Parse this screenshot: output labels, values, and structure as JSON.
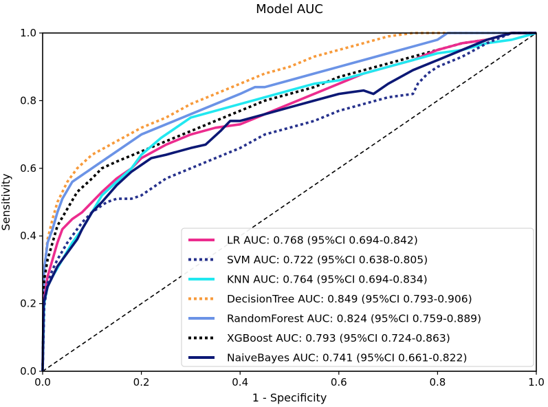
{
  "chart_data": {
    "type": "line",
    "title": "Model AUC",
    "xlabel": "1 - Specificity",
    "ylabel": "Sensitivity",
    "xlim": [
      0,
      1
    ],
    "ylim": [
      0,
      1
    ],
    "xticks": [
      "0.0",
      "0.2",
      "0.4",
      "0.6",
      "0.8",
      "1.0"
    ],
    "yticks": [
      "0.0",
      "0.2",
      "0.4",
      "0.6",
      "0.8",
      "1.0"
    ],
    "legend_position": "lower-right",
    "reference_line": {
      "name": "chance",
      "x": [
        0,
        1
      ],
      "y": [
        0,
        1
      ],
      "color": "#000000",
      "style": "dashed"
    },
    "series": [
      {
        "name": "LR",
        "label": "LR AUC: 0.768 (95%CI 0.694-0.842)",
        "color": "#ec2c8e",
        "style": "solid",
        "x": [
          0,
          0.003,
          0.01,
          0.02,
          0.03,
          0.04,
          0.06,
          0.08,
          0.1,
          0.12,
          0.15,
          0.18,
          0.2,
          0.25,
          0.3,
          0.35,
          0.4,
          0.45,
          0.5,
          0.55,
          0.6,
          0.65,
          0.7,
          0.75,
          0.8,
          0.85,
          0.9,
          0.95,
          1.0
        ],
        "y": [
          0,
          0.21,
          0.28,
          0.33,
          0.38,
          0.42,
          0.45,
          0.47,
          0.5,
          0.53,
          0.57,
          0.6,
          0.63,
          0.67,
          0.7,
          0.72,
          0.73,
          0.76,
          0.79,
          0.82,
          0.85,
          0.88,
          0.9,
          0.92,
          0.95,
          0.97,
          0.98,
          1.0,
          1.0
        ]
      },
      {
        "name": "SVM",
        "label": "SVM AUC: 0.722 (95%CI 0.638-0.805)",
        "color": "#26318c",
        "style": "dotted",
        "x": [
          0,
          0.003,
          0.01,
          0.02,
          0.03,
          0.05,
          0.08,
          0.1,
          0.13,
          0.15,
          0.18,
          0.2,
          0.25,
          0.3,
          0.35,
          0.4,
          0.45,
          0.5,
          0.55,
          0.6,
          0.65,
          0.7,
          0.75,
          0.76,
          0.78,
          0.8,
          0.85,
          0.9,
          0.95,
          1.0
        ],
        "y": [
          0,
          0.19,
          0.26,
          0.3,
          0.33,
          0.38,
          0.44,
          0.47,
          0.5,
          0.51,
          0.51,
          0.52,
          0.57,
          0.6,
          0.63,
          0.66,
          0.7,
          0.72,
          0.74,
          0.77,
          0.79,
          0.81,
          0.82,
          0.85,
          0.88,
          0.9,
          0.93,
          0.97,
          1.0,
          1.0
        ]
      },
      {
        "name": "KNN",
        "label": "KNN AUC: 0.764 (95%CI 0.694-0.834)",
        "color": "#22e8f0",
        "style": "solid",
        "x": [
          0,
          0.003,
          0.01,
          0.02,
          0.04,
          0.06,
          0.08,
          0.1,
          0.12,
          0.15,
          0.18,
          0.2,
          0.24,
          0.27,
          0.3,
          0.35,
          0.4,
          0.45,
          0.5,
          0.55,
          0.6,
          0.65,
          0.7,
          0.75,
          0.8,
          0.85,
          0.9,
          0.95,
          1.0
        ],
        "y": [
          0,
          0.2,
          0.25,
          0.28,
          0.33,
          0.38,
          0.42,
          0.47,
          0.52,
          0.56,
          0.6,
          0.64,
          0.69,
          0.72,
          0.75,
          0.77,
          0.79,
          0.81,
          0.83,
          0.85,
          0.86,
          0.88,
          0.9,
          0.92,
          0.94,
          0.95,
          0.97,
          0.98,
          1.0
        ]
      },
      {
        "name": "DecisionTree",
        "label": "DecisionTree AUC: 0.849 (95%CI 0.793-0.906)",
        "color": "#f79a3b",
        "style": "dotted",
        "x": [
          0,
          0.003,
          0.01,
          0.02,
          0.03,
          0.05,
          0.07,
          0.1,
          0.15,
          0.2,
          0.25,
          0.3,
          0.35,
          0.4,
          0.45,
          0.5,
          0.55,
          0.6,
          0.65,
          0.7,
          0.75,
          0.8,
          0.85,
          0.9,
          1.0
        ],
        "y": [
          0,
          0.3,
          0.39,
          0.45,
          0.5,
          0.56,
          0.6,
          0.64,
          0.68,
          0.72,
          0.75,
          0.79,
          0.82,
          0.85,
          0.88,
          0.9,
          0.93,
          0.95,
          0.97,
          0.99,
          1.0,
          1.0,
          1.0,
          1.0,
          1.0
        ]
      },
      {
        "name": "RandomForest",
        "label": "RandomForest AUC: 0.824 (95%CI 0.759-0.889)",
        "color": "#6b93e6",
        "style": "solid",
        "x": [
          0,
          0.003,
          0.01,
          0.02,
          0.03,
          0.04,
          0.06,
          0.08,
          0.1,
          0.13,
          0.16,
          0.2,
          0.25,
          0.3,
          0.35,
          0.4,
          0.43,
          0.45,
          0.5,
          0.55,
          0.6,
          0.65,
          0.7,
          0.75,
          0.8,
          0.82,
          0.9,
          1.0
        ],
        "y": [
          0,
          0.3,
          0.38,
          0.42,
          0.47,
          0.51,
          0.56,
          0.58,
          0.6,
          0.63,
          0.66,
          0.7,
          0.73,
          0.76,
          0.79,
          0.82,
          0.84,
          0.84,
          0.86,
          0.88,
          0.9,
          0.92,
          0.94,
          0.96,
          0.98,
          1.0,
          1.0,
          1.0
        ]
      },
      {
        "name": "XGBoost",
        "label": "XGBoost AUC: 0.793 (95%CI 0.724-0.863)",
        "color": "#000000",
        "style": "dotted",
        "x": [
          0,
          0.003,
          0.01,
          0.02,
          0.03,
          0.05,
          0.07,
          0.1,
          0.12,
          0.15,
          0.2,
          0.25,
          0.3,
          0.35,
          0.4,
          0.45,
          0.5,
          0.55,
          0.6,
          0.65,
          0.7,
          0.75,
          0.8,
          0.85,
          0.9,
          0.95,
          1.0
        ],
        "y": [
          0,
          0.27,
          0.33,
          0.38,
          0.43,
          0.48,
          0.53,
          0.57,
          0.6,
          0.62,
          0.65,
          0.68,
          0.71,
          0.74,
          0.77,
          0.8,
          0.82,
          0.84,
          0.87,
          0.89,
          0.91,
          0.93,
          0.95,
          0.97,
          0.98,
          1.0,
          1.0
        ]
      },
      {
        "name": "NaiveBayes",
        "label": "NaiveBayes AUC: 0.741 (95%CI 0.661-0.822)",
        "color": "#0c1875",
        "style": "solid",
        "x": [
          0,
          0.002,
          0.005,
          0.01,
          0.02,
          0.03,
          0.05,
          0.07,
          0.08,
          0.1,
          0.12,
          0.15,
          0.18,
          0.2,
          0.22,
          0.25,
          0.3,
          0.33,
          0.36,
          0.38,
          0.4,
          0.45,
          0.5,
          0.55,
          0.6,
          0.65,
          0.67,
          0.7,
          0.75,
          0.8,
          0.85,
          0.9,
          0.95,
          1.0
        ],
        "y": [
          0,
          0.2,
          0.22,
          0.25,
          0.28,
          0.31,
          0.35,
          0.39,
          0.42,
          0.47,
          0.5,
          0.55,
          0.59,
          0.61,
          0.63,
          0.64,
          0.66,
          0.67,
          0.71,
          0.74,
          0.74,
          0.76,
          0.78,
          0.8,
          0.82,
          0.83,
          0.82,
          0.85,
          0.89,
          0.92,
          0.95,
          0.98,
          1.0,
          1.0
        ]
      }
    ]
  }
}
